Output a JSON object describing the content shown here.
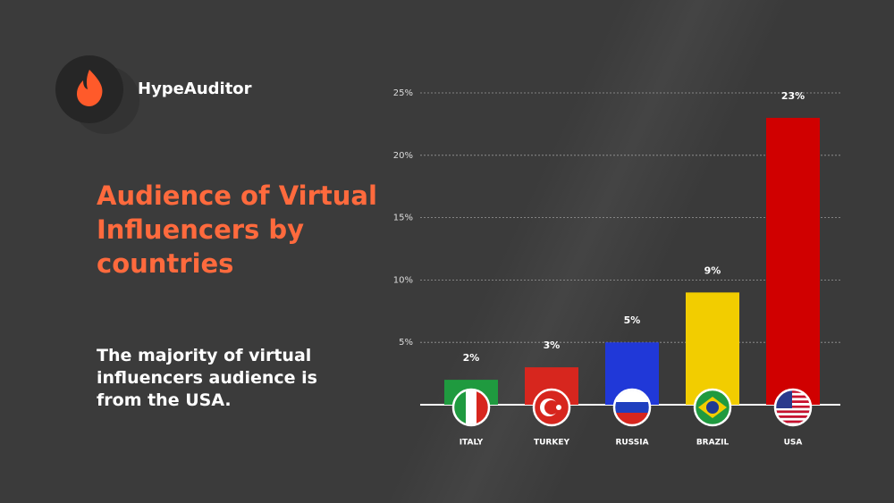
{
  "brand": "HypeAuditor",
  "chart_data": {
    "type": "bar",
    "title": "Audience of Virtual Influencers by countries",
    "subtitle": "The majority of virtual influencers audience is from the USA.",
    "categories": [
      "ITALY",
      "TURKEY",
      "RUSSIA",
      "BRAZIL",
      "USA"
    ],
    "values": [
      2,
      3,
      5,
      9,
      23
    ],
    "value_labels": [
      "2%",
      "3%",
      "5%",
      "9%",
      "23%"
    ],
    "colors": [
      "#1f9a3f",
      "#d7261e",
      "#2038d8",
      "#f2cd00",
      "#d00000"
    ],
    "ylim": [
      0,
      25
    ],
    "yticks": [
      {
        "value": 5,
        "label": "5%"
      },
      {
        "value": 10,
        "label": "10%"
      },
      {
        "value": 15,
        "label": "15%"
      },
      {
        "value": 20,
        "label": "20%"
      },
      {
        "value": 25,
        "label": "25%"
      }
    ],
    "grid": true
  }
}
